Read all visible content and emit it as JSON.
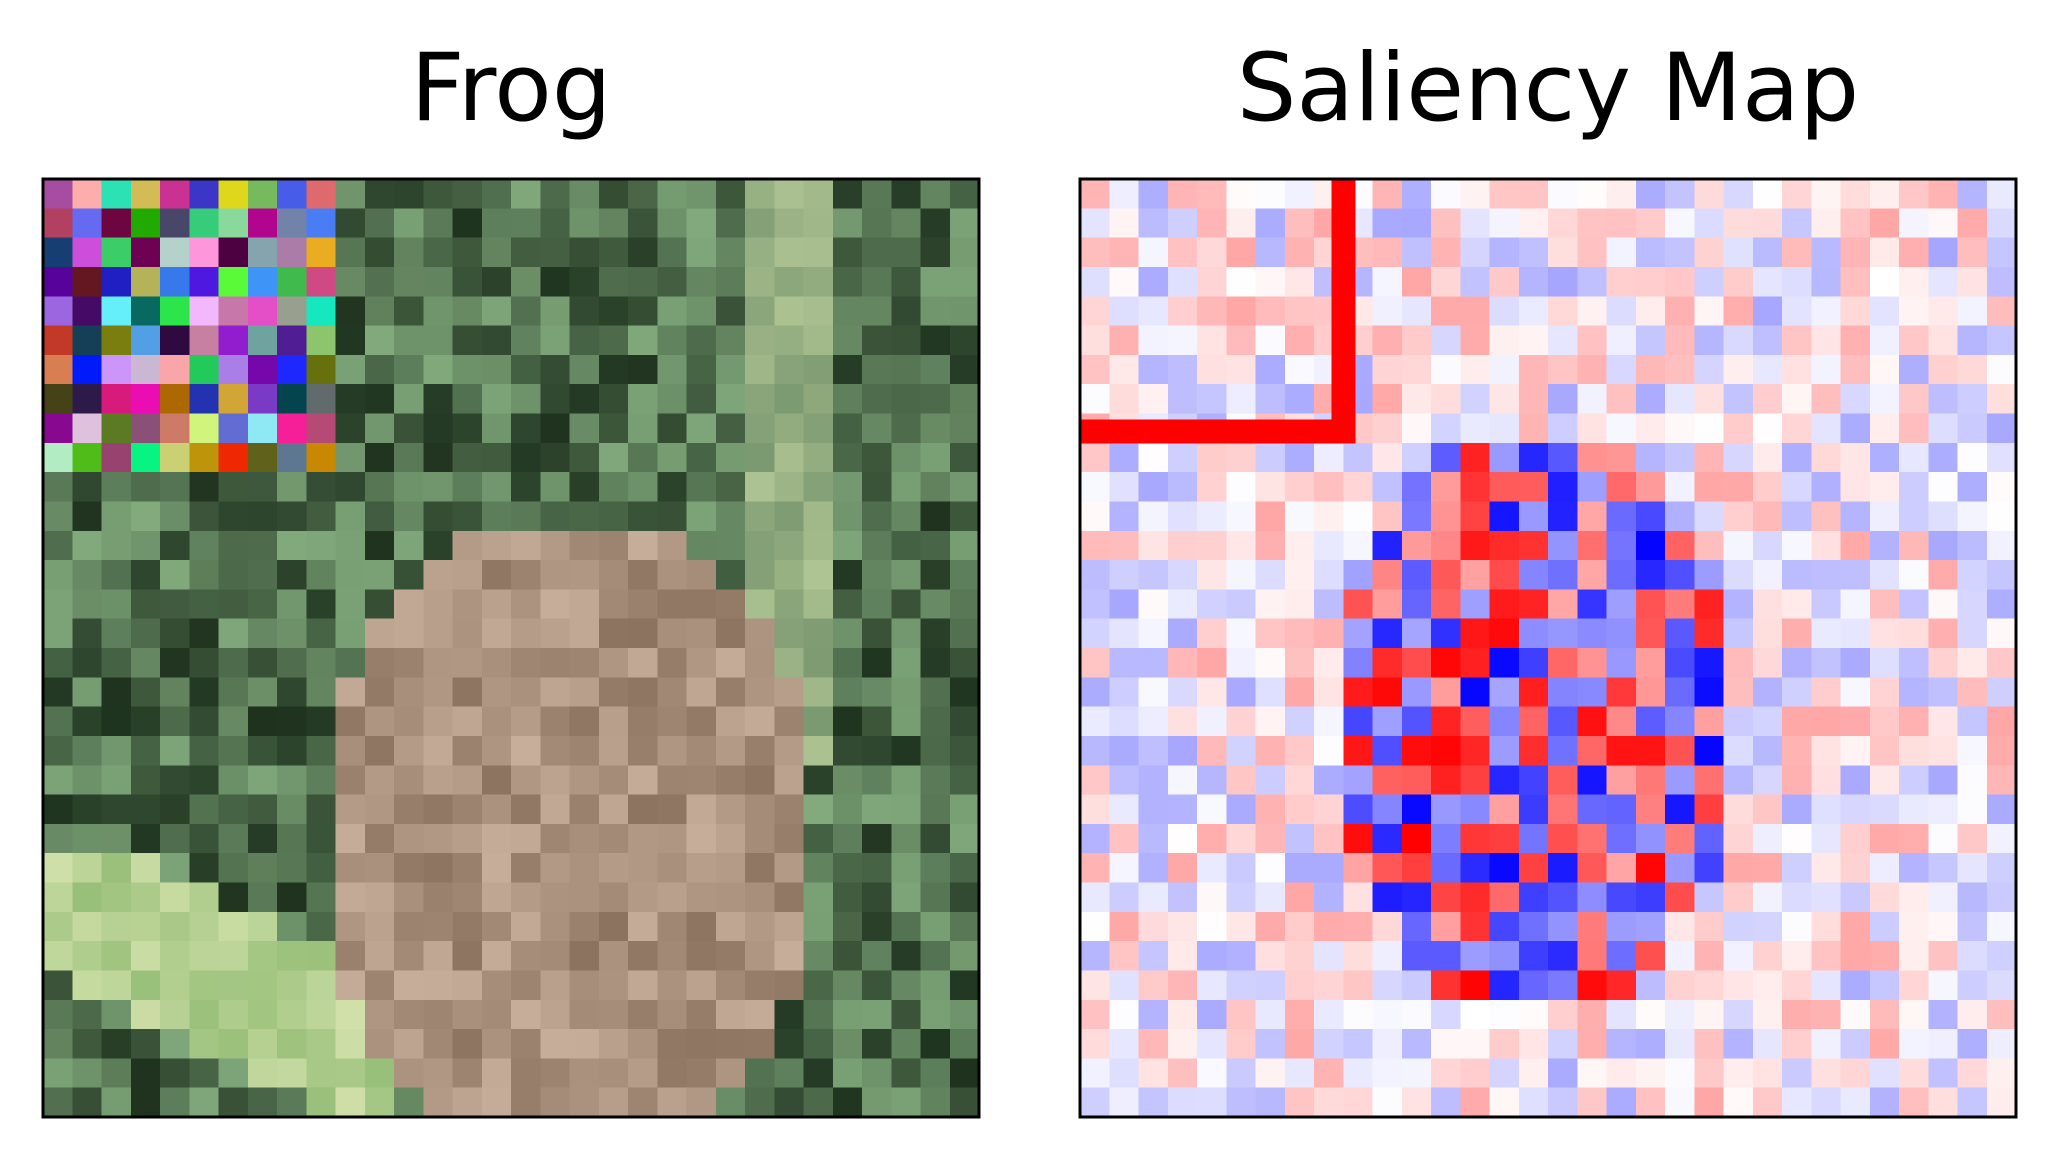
{
  "panels": [
    {
      "title": "Frog"
    },
    {
      "title": "Saliency Map"
    }
  ]
}
